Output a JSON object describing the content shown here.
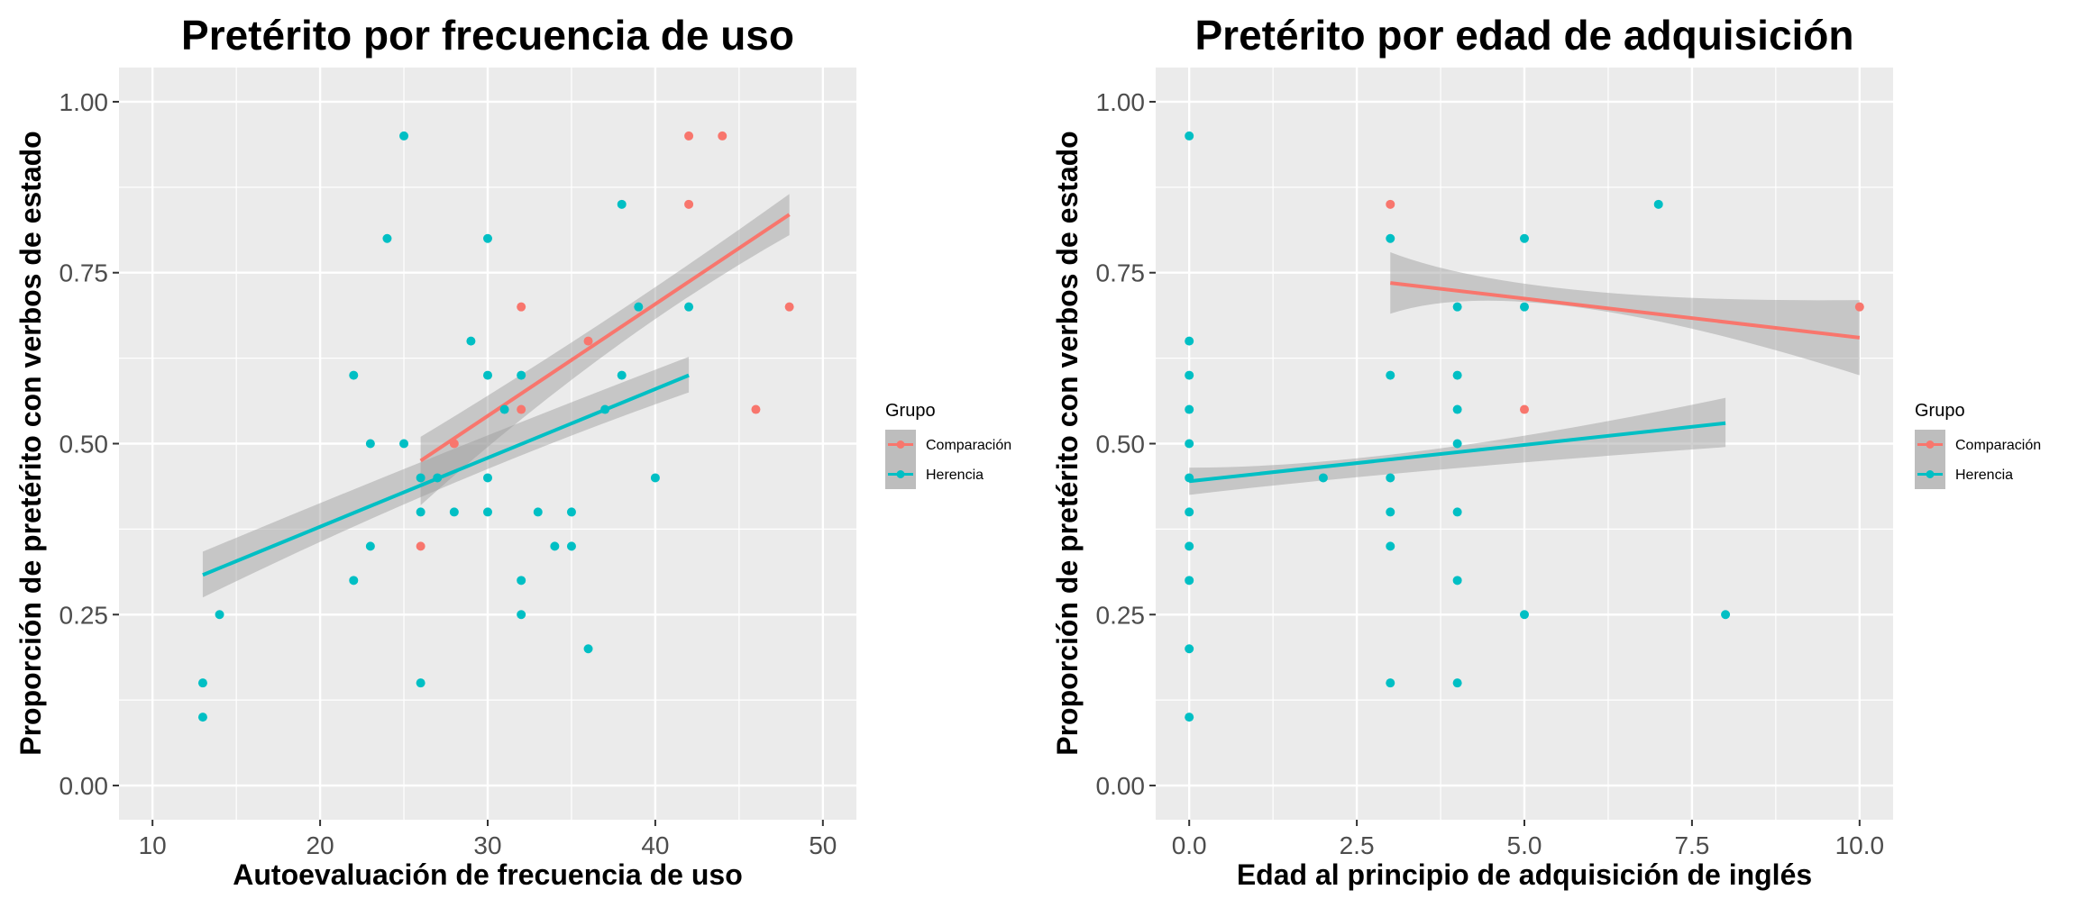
{
  "chart_data": [
    {
      "type": "scatter",
      "title": "Pretérito por frecuencia de uso",
      "xlabel": "Autoevaluación de frecuencia de uso",
      "ylabel": "Proporción de pretérito con verbos de estado",
      "xlim": [
        8,
        52
      ],
      "ylim": [
        -0.05,
        1.05
      ],
      "x_ticks": [
        10,
        20,
        30,
        40,
        50
      ],
      "x_tick_labels": [
        "10",
        "20",
        "30",
        "40",
        "50"
      ],
      "y_ticks": [
        0,
        0.25,
        0.5,
        0.75,
        1.0
      ],
      "y_tick_labels": [
        "0.00",
        "0.25",
        "0.50",
        "0.75",
        "1.00"
      ],
      "grid": true,
      "legend_title": "Grupo",
      "legend_position": "right",
      "series": [
        {
          "name": "Comparación",
          "color": "#F8766D",
          "points": [
            [
              26,
              0.35
            ],
            [
              28,
              0.5
            ],
            [
              32,
              0.7
            ],
            [
              32,
              0.55
            ],
            [
              36,
              0.65
            ],
            [
              42,
              0.95
            ],
            [
              42,
              0.85
            ],
            [
              44,
              0.95
            ],
            [
              46,
              0.55
            ],
            [
              48,
              0.7
            ]
          ],
          "fit": {
            "x": [
              26,
              48
            ],
            "y": [
              0.475,
              0.835
            ],
            "ci_lower": [
              0.41,
              0.805
            ],
            "ci_upper": [
              0.51,
              0.865
            ],
            "ci_mid_x": 37,
            "ci_mid": [
              0.63,
              0.68
            ]
          }
        },
        {
          "name": "Herencia",
          "color": "#00BFC4",
          "points": [
            [
              13,
              0.15
            ],
            [
              13,
              0.1
            ],
            [
              14,
              0.25
            ],
            [
              22,
              0.6
            ],
            [
              22,
              0.3
            ],
            [
              23,
              0.5
            ],
            [
              23,
              0.35
            ],
            [
              24,
              0.8
            ],
            [
              25,
              0.95
            ],
            [
              25,
              0.5
            ],
            [
              26,
              0.45
            ],
            [
              26,
              0.4
            ],
            [
              26,
              0.15
            ],
            [
              27,
              0.45
            ],
            [
              28,
              0.4
            ],
            [
              29,
              0.65
            ],
            [
              30,
              0.8
            ],
            [
              30,
              0.6
            ],
            [
              30,
              0.45
            ],
            [
              30,
              0.4
            ],
            [
              31,
              0.55
            ],
            [
              32,
              0.6
            ],
            [
              32,
              0.3
            ],
            [
              32,
              0.25
            ],
            [
              33,
              0.4
            ],
            [
              34,
              0.35
            ],
            [
              35,
              0.4
            ],
            [
              35,
              0.35
            ],
            [
              36,
              0.2
            ],
            [
              37,
              0.55
            ],
            [
              38,
              0.85
            ],
            [
              38,
              0.6
            ],
            [
              39,
              0.7
            ],
            [
              40,
              0.45
            ],
            [
              42,
              0.7
            ]
          ],
          "fit": {
            "x": [
              13,
              42
            ],
            "y": [
              0.308,
              0.6
            ],
            "ci_lower": [
              0.275,
              0.575
            ],
            "ci_upper": [
              0.342,
              0.627
            ],
            "ci_mid_x": 28,
            "ci_mid": [
              0.44,
              0.49
            ]
          }
        }
      ]
    },
    {
      "type": "scatter",
      "title": "Pretérito por edad de adquisición",
      "xlabel": "Edad al principio de adquisición de inglés",
      "ylabel": "Proporción de pretérito con verbos de estado",
      "xlim": [
        -0.5,
        10.5
      ],
      "ylim": [
        -0.05,
        1.05
      ],
      "x_ticks": [
        0,
        2.5,
        5,
        7.5,
        10
      ],
      "x_tick_labels": [
        "0.0",
        "2.5",
        "5.0",
        "7.5",
        "10.0"
      ],
      "y_ticks": [
        0,
        0.25,
        0.5,
        0.75,
        1.0
      ],
      "y_tick_labels": [
        "0.00",
        "0.25",
        "0.50",
        "0.75",
        "1.00"
      ],
      "grid": true,
      "legend_title": "Grupo",
      "legend_position": "right",
      "series": [
        {
          "name": "Comparación",
          "color": "#F8766D",
          "points": [
            [
              3,
              0.85
            ],
            [
              5,
              0.55
            ],
            [
              10,
              0.7
            ]
          ],
          "fit": {
            "x": [
              3,
              10
            ],
            "y": [
              0.735,
              0.655
            ],
            "ci_lower": [
              0.69,
              0.6
            ],
            "ci_upper": [
              0.78,
              0.71
            ],
            "ci_mid_x": 5,
            "ci_mid": [
              0.7,
              0.725
            ]
          }
        },
        {
          "name": "Herencia",
          "color": "#00BFC4",
          "points": [
            [
              0,
              0.95
            ],
            [
              0,
              0.65
            ],
            [
              0,
              0.6
            ],
            [
              0,
              0.55
            ],
            [
              0,
              0.5
            ],
            [
              0,
              0.45
            ],
            [
              0,
              0.4
            ],
            [
              0,
              0.35
            ],
            [
              0,
              0.3
            ],
            [
              0,
              0.2
            ],
            [
              0,
              0.1
            ],
            [
              2,
              0.45
            ],
            [
              3,
              0.8
            ],
            [
              3,
              0.6
            ],
            [
              3,
              0.45
            ],
            [
              3,
              0.4
            ],
            [
              3,
              0.35
            ],
            [
              3,
              0.15
            ],
            [
              4,
              0.7
            ],
            [
              4,
              0.6
            ],
            [
              4,
              0.55
            ],
            [
              4,
              0.5
            ],
            [
              4,
              0.4
            ],
            [
              4,
              0.3
            ],
            [
              4,
              0.15
            ],
            [
              5,
              0.8
            ],
            [
              5,
              0.7
            ],
            [
              5,
              0.25
            ],
            [
              7,
              0.85
            ],
            [
              8,
              0.25
            ]
          ],
          "fit": {
            "x": [
              0,
              8
            ],
            "y": [
              0.445,
              0.53
            ],
            "ci_lower": [
              0.425,
              0.495
            ],
            "ci_upper": [
              0.465,
              0.567
            ],
            "ci_mid_x": 3,
            "ci_mid": [
              0.46,
              0.49
            ]
          }
        }
      ]
    }
  ]
}
